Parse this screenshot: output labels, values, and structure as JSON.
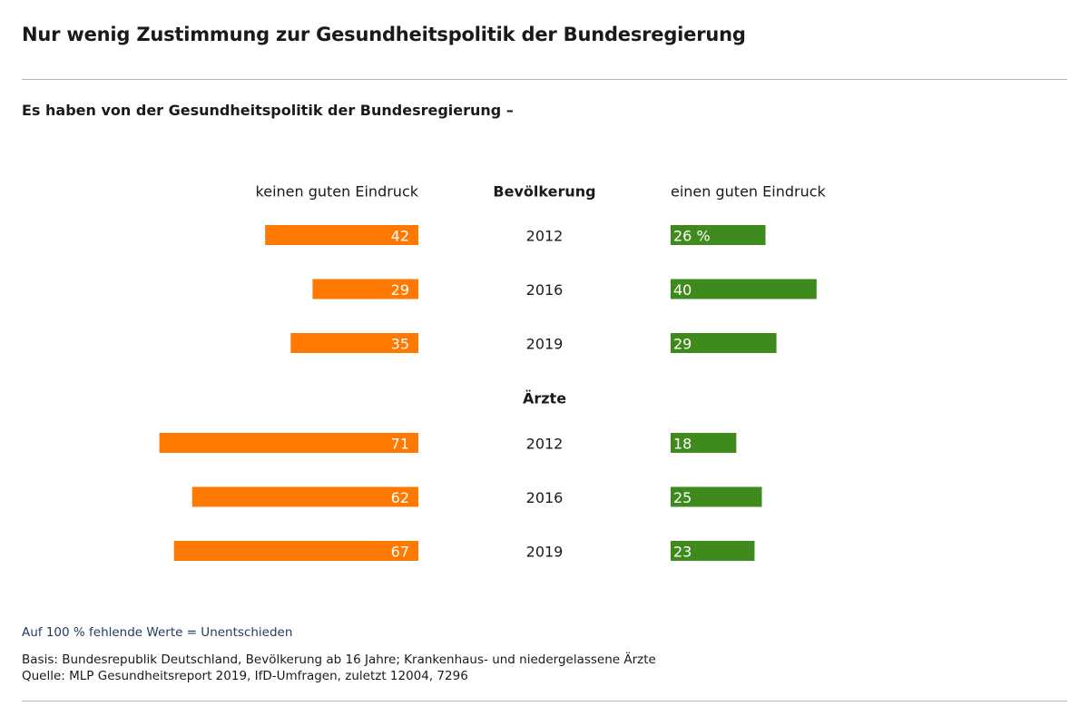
{
  "header": {
    "title": "Nur wenig Zustimmung zur Gesundheitspolitik der Bundesregierung",
    "subtitle": "Es haben von der Gesundheitspolitik der Bundesregierung –"
  },
  "chart_data": {
    "type": "bar",
    "orientation": "horizontal-diverging",
    "column_headers": {
      "left": "keinen guten Eindruck",
      "center": "Bevölkerung",
      "right": "einen guten Eindruck"
    },
    "groups": [
      {
        "name": "Bevölkerung",
        "label": "",
        "rows": [
          {
            "year": "2012",
            "negative": 42,
            "negative_label": "42",
            "positive": 26,
            "positive_label": "26 %"
          },
          {
            "year": "2016",
            "negative": 29,
            "negative_label": "29",
            "positive": 40,
            "positive_label": "40"
          },
          {
            "year": "2019",
            "negative": 35,
            "negative_label": "35",
            "positive": 29,
            "positive_label": "29"
          }
        ]
      },
      {
        "name": "Ärzte",
        "label": "Ärzte",
        "rows": [
          {
            "year": "2012",
            "negative": 71,
            "negative_label": "71",
            "positive": 18,
            "positive_label": "18"
          },
          {
            "year": "2016",
            "negative": 62,
            "negative_label": "62",
            "positive": 25,
            "positive_label": "25"
          },
          {
            "year": "2019",
            "negative": 67,
            "negative_label": "67",
            "positive": 23,
            "positive_label": "23"
          }
        ]
      }
    ],
    "unit": "%",
    "colors": {
      "negative": "#ff7800",
      "positive": "#3f8a1c"
    }
  },
  "footer": {
    "note": "Auf 100 % fehlende Werte = Unentschieden",
    "basis": "Basis: Bundesrepublik Deutschland, Bevölkerung ab 16 Jahre; Krankenhaus- und niedergelassene Ärzte",
    "source": "Quelle: MLP Gesundheitsreport 2019, IfD-Umfragen, zuletzt 12004, 7296"
  }
}
